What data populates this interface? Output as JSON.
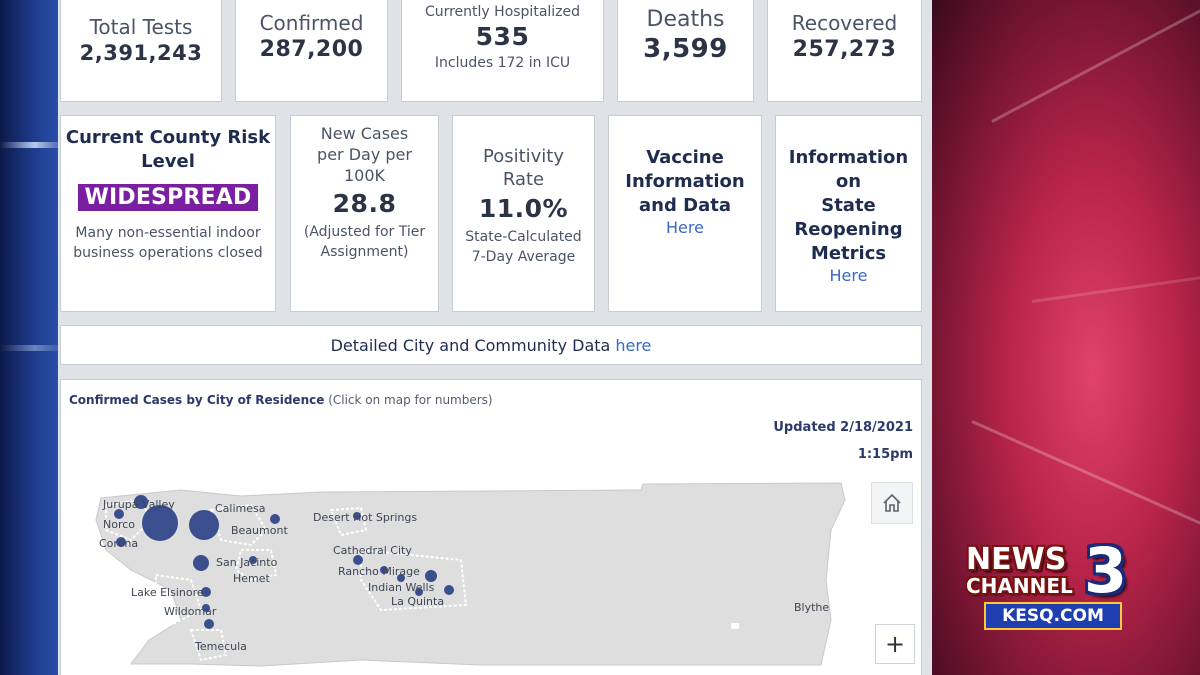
{
  "stats_row1": [
    {
      "label": "Total Tests",
      "value": "2,391,243"
    },
    {
      "label": "Confirmed",
      "value": "287,200"
    },
    {
      "label": "Currently Hospitalized",
      "value": "535",
      "note": "Includes 172 in ICU"
    },
    {
      "label": "Deaths",
      "value": "3,599"
    },
    {
      "label": "Recovered",
      "value": "257,273"
    }
  ],
  "risk": {
    "title_line1": "Current County Risk",
    "title_line2": "Level",
    "badge": "WIDESPREAD",
    "badge_color": "#7b1fa2",
    "desc_line1": "Many non-essential indoor",
    "desc_line2": "business operations closed"
  },
  "new_cases": {
    "line1": "New Cases",
    "line2": "per Day per",
    "line3": "100K",
    "value": "28.8",
    "note_line1": "(Adjusted for Tier",
    "note_line2": "Assignment)"
  },
  "positivity": {
    "line1": "Positivity",
    "line2": "Rate",
    "value": "11.0%",
    "note_line1": "State-Calculated",
    "note_line2": "7-Day Average"
  },
  "vaccine": {
    "line1": "Vaccine",
    "line2": "Information",
    "line3": "and Data",
    "link": "Here"
  },
  "reopening": {
    "line1": "Information",
    "line2": "on",
    "line3": "State",
    "line4": "Reopening",
    "line5": "Metrics",
    "link": "Here"
  },
  "city_data": {
    "text": "Detailed City and Community Data",
    "link": "here"
  },
  "map": {
    "title": "Confirmed Cases by City of Residence",
    "subtitle": "(Click on map for numbers)",
    "updated_date": "Updated 2/18/2021",
    "updated_time": "1:15pm",
    "home_icon": "home-icon",
    "zoom_in_label": "+",
    "cities": [
      "Jurupa Valley",
      "Norco",
      "Corona",
      "Calimesa",
      "Beaumont",
      "San Jacinto",
      "Hemet",
      "Lake Elsinore",
      "Wildomar",
      "Temecula",
      "Desert Hot Springs",
      "Cathedral City",
      "Rancho Mirage",
      "Indian Wells",
      "La Quinta",
      "Blythe"
    ]
  },
  "logo": {
    "news": "NEWS",
    "channel": "CHANNEL",
    "number": "3",
    "site": "KESQ.COM"
  }
}
